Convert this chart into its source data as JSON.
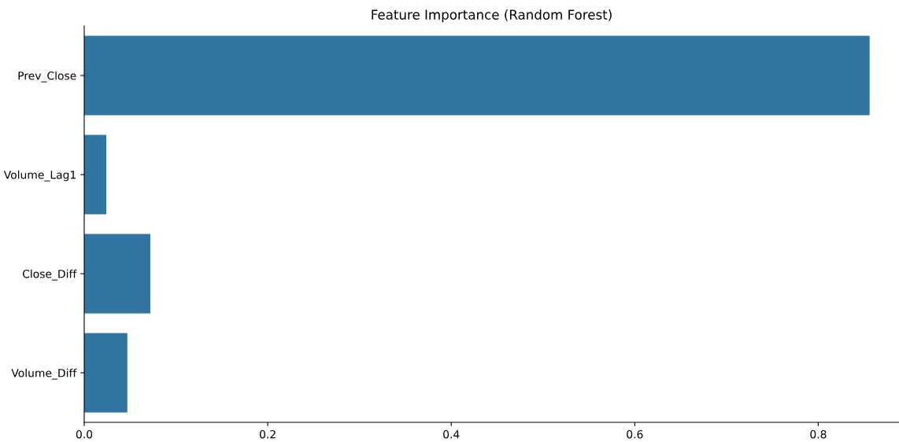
{
  "chart_data": {
    "type": "bar",
    "orientation": "horizontal",
    "title": "Feature Importance (Random Forest)",
    "categories": [
      "Prev_Close",
      "Volume_Lag1",
      "Close_Diff",
      "Volume_Diff"
    ],
    "values": [
      0.856,
      0.024,
      0.072,
      0.047
    ],
    "color": "#3274a1",
    "xlim": [
      0,
      0.888
    ],
    "xticks": [
      {
        "value": 0,
        "label": "0.0"
      },
      {
        "value": 0.2,
        "label": "0.2"
      },
      {
        "value": 0.4,
        "label": "0.4"
      },
      {
        "value": 0.6,
        "label": "0.6"
      },
      {
        "value": 0.8,
        "label": "0.8"
      }
    ],
    "grid": false
  }
}
